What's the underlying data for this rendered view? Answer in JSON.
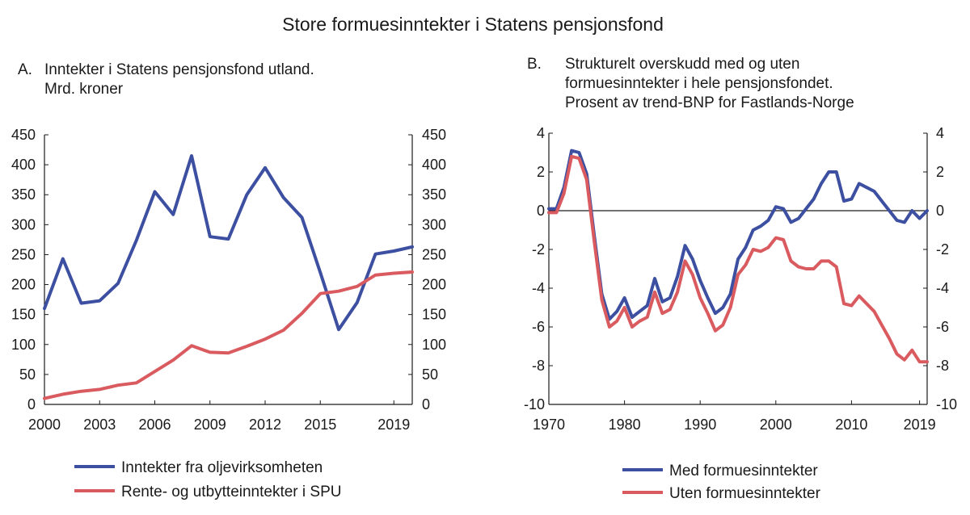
{
  "figure": {
    "title": "Store formuesinntekter i Statens pensjonsfond"
  },
  "colors": {
    "blue": "#3C4FA0",
    "red": "#D95B5F",
    "axis": "#1a1a1a",
    "zero_line": "#1a1a1a"
  },
  "chart_data": [
    {
      "type": "line",
      "panel_label": "A.",
      "title": [
        "Inntekter i Statens pensjonsfond utland.",
        "Mrd. kroner"
      ],
      "xlabel": "",
      "ylabel": "",
      "xlim": [
        2000,
        2020
      ],
      "ylim": [
        0,
        450
      ],
      "x_ticks": [
        2000,
        2003,
        2006,
        2009,
        2012,
        2015,
        2019
      ],
      "x_tick_labels": [
        "2000",
        "2003",
        "2006",
        "2009",
        "2012",
        "2015",
        "2019"
      ],
      "y_ticks": [
        0,
        50,
        100,
        150,
        200,
        250,
        300,
        350,
        400,
        450
      ],
      "y_tick_labels": [
        "0",
        "50",
        "100",
        "150",
        "200",
        "250",
        "300",
        "350",
        "400",
        "450"
      ],
      "y_axis_both_sides": true,
      "grid": false,
      "legend_position": "bottom",
      "x": [
        2000,
        2001,
        2002,
        2003,
        2004,
        2005,
        2006,
        2007,
        2008,
        2009,
        2010,
        2011,
        2012,
        2013,
        2014,
        2015,
        2016,
        2017,
        2018,
        2019,
        2020
      ],
      "series": [
        {
          "name": "Inntekter fra oljevirksomheten",
          "color": "#3C4FA0",
          "values": [
            160,
            243,
            169,
            173,
            202,
            274,
            355,
            317,
            415,
            280,
            276,
            350,
            395,
            345,
            312,
            220,
            125,
            170,
            251,
            256,
            263
          ]
        },
        {
          "name": "Rente- og utbytteinntekter i SPU",
          "color": "#D95B5F",
          "values": [
            10,
            17,
            22,
            25,
            32,
            36,
            55,
            74,
            98,
            87,
            86,
            97,
            109,
            124,
            152,
            185,
            189,
            197,
            216,
            219,
            221
          ]
        }
      ]
    },
    {
      "type": "line",
      "panel_label": "B.",
      "title": [
        "Strukturelt overskudd med og uten",
        "formuesinntekter i hele pensjonsfondet.",
        "Prosent av trend-BNP for Fastlands-Norge"
      ],
      "xlabel": "",
      "ylabel": "",
      "xlim": [
        1970,
        2020
      ],
      "ylim": [
        -10,
        4
      ],
      "x_ticks": [
        1970,
        1980,
        1990,
        2000,
        2010,
        2019
      ],
      "x_tick_labels": [
        "1970",
        "1980",
        "1990",
        "2000",
        "2010",
        "2019"
      ],
      "y_ticks": [
        -10,
        -8,
        -6,
        -4,
        -2,
        0,
        2,
        4
      ],
      "y_tick_labels": [
        "-10",
        "-8",
        "-6",
        "-4",
        "-2",
        "0",
        "2",
        "4"
      ],
      "y_axis_both_sides": true,
      "zero_line": true,
      "grid": false,
      "legend_position": "bottom",
      "x": [
        1970,
        1971,
        1972,
        1973,
        1974,
        1975,
        1976,
        1977,
        1978,
        1979,
        1980,
        1981,
        1982,
        1983,
        1984,
        1985,
        1986,
        1987,
        1988,
        1989,
        1990,
        1991,
        1992,
        1993,
        1994,
        1995,
        1996,
        1997,
        1998,
        1999,
        2000,
        2001,
        2002,
        2003,
        2004,
        2005,
        2006,
        2007,
        2008,
        2009,
        2010,
        2011,
        2012,
        2013,
        2014,
        2015,
        2016,
        2017,
        2018,
        2019,
        2020
      ],
      "series": [
        {
          "name": "Med formuesinntekter",
          "color": "#3C4FA0",
          "values": [
            0.1,
            0.1,
            1.2,
            3.1,
            3.0,
            1.9,
            -1.3,
            -4.3,
            -5.6,
            -5.2,
            -4.5,
            -5.5,
            -5.2,
            -4.9,
            -3.5,
            -4.7,
            -4.5,
            -3.4,
            -1.8,
            -2.5,
            -3.6,
            -4.5,
            -5.3,
            -5.0,
            -4.3,
            -2.5,
            -1.9,
            -1.0,
            -0.8,
            -0.5,
            0.2,
            0.1,
            -0.6,
            -0.4,
            0.1,
            0.6,
            1.4,
            2.0,
            2.0,
            0.5,
            0.6,
            1.4,
            1.2,
            1.0,
            0.5,
            0.0,
            -0.5,
            -0.6,
            0.0,
            -0.4,
            0.0
          ]
        },
        {
          "name": "Uten formuesinntekter",
          "color": "#D95B5F",
          "values": [
            -0.1,
            -0.1,
            0.9,
            2.8,
            2.7,
            1.6,
            -1.6,
            -4.6,
            -6.0,
            -5.7,
            -5.0,
            -6.0,
            -5.7,
            -5.5,
            -4.2,
            -5.3,
            -5.1,
            -4.2,
            -2.6,
            -3.3,
            -4.5,
            -5.3,
            -6.2,
            -5.9,
            -5.0,
            -3.3,
            -2.8,
            -2.0,
            -2.1,
            -1.9,
            -1.4,
            -1.5,
            -2.6,
            -2.9,
            -3.0,
            -3.0,
            -2.6,
            -2.6,
            -2.9,
            -4.8,
            -4.9,
            -4.4,
            -4.8,
            -5.2,
            -5.9,
            -6.6,
            -7.4,
            -7.7,
            -7.2,
            -7.8,
            -7.8
          ]
        }
      ]
    }
  ]
}
